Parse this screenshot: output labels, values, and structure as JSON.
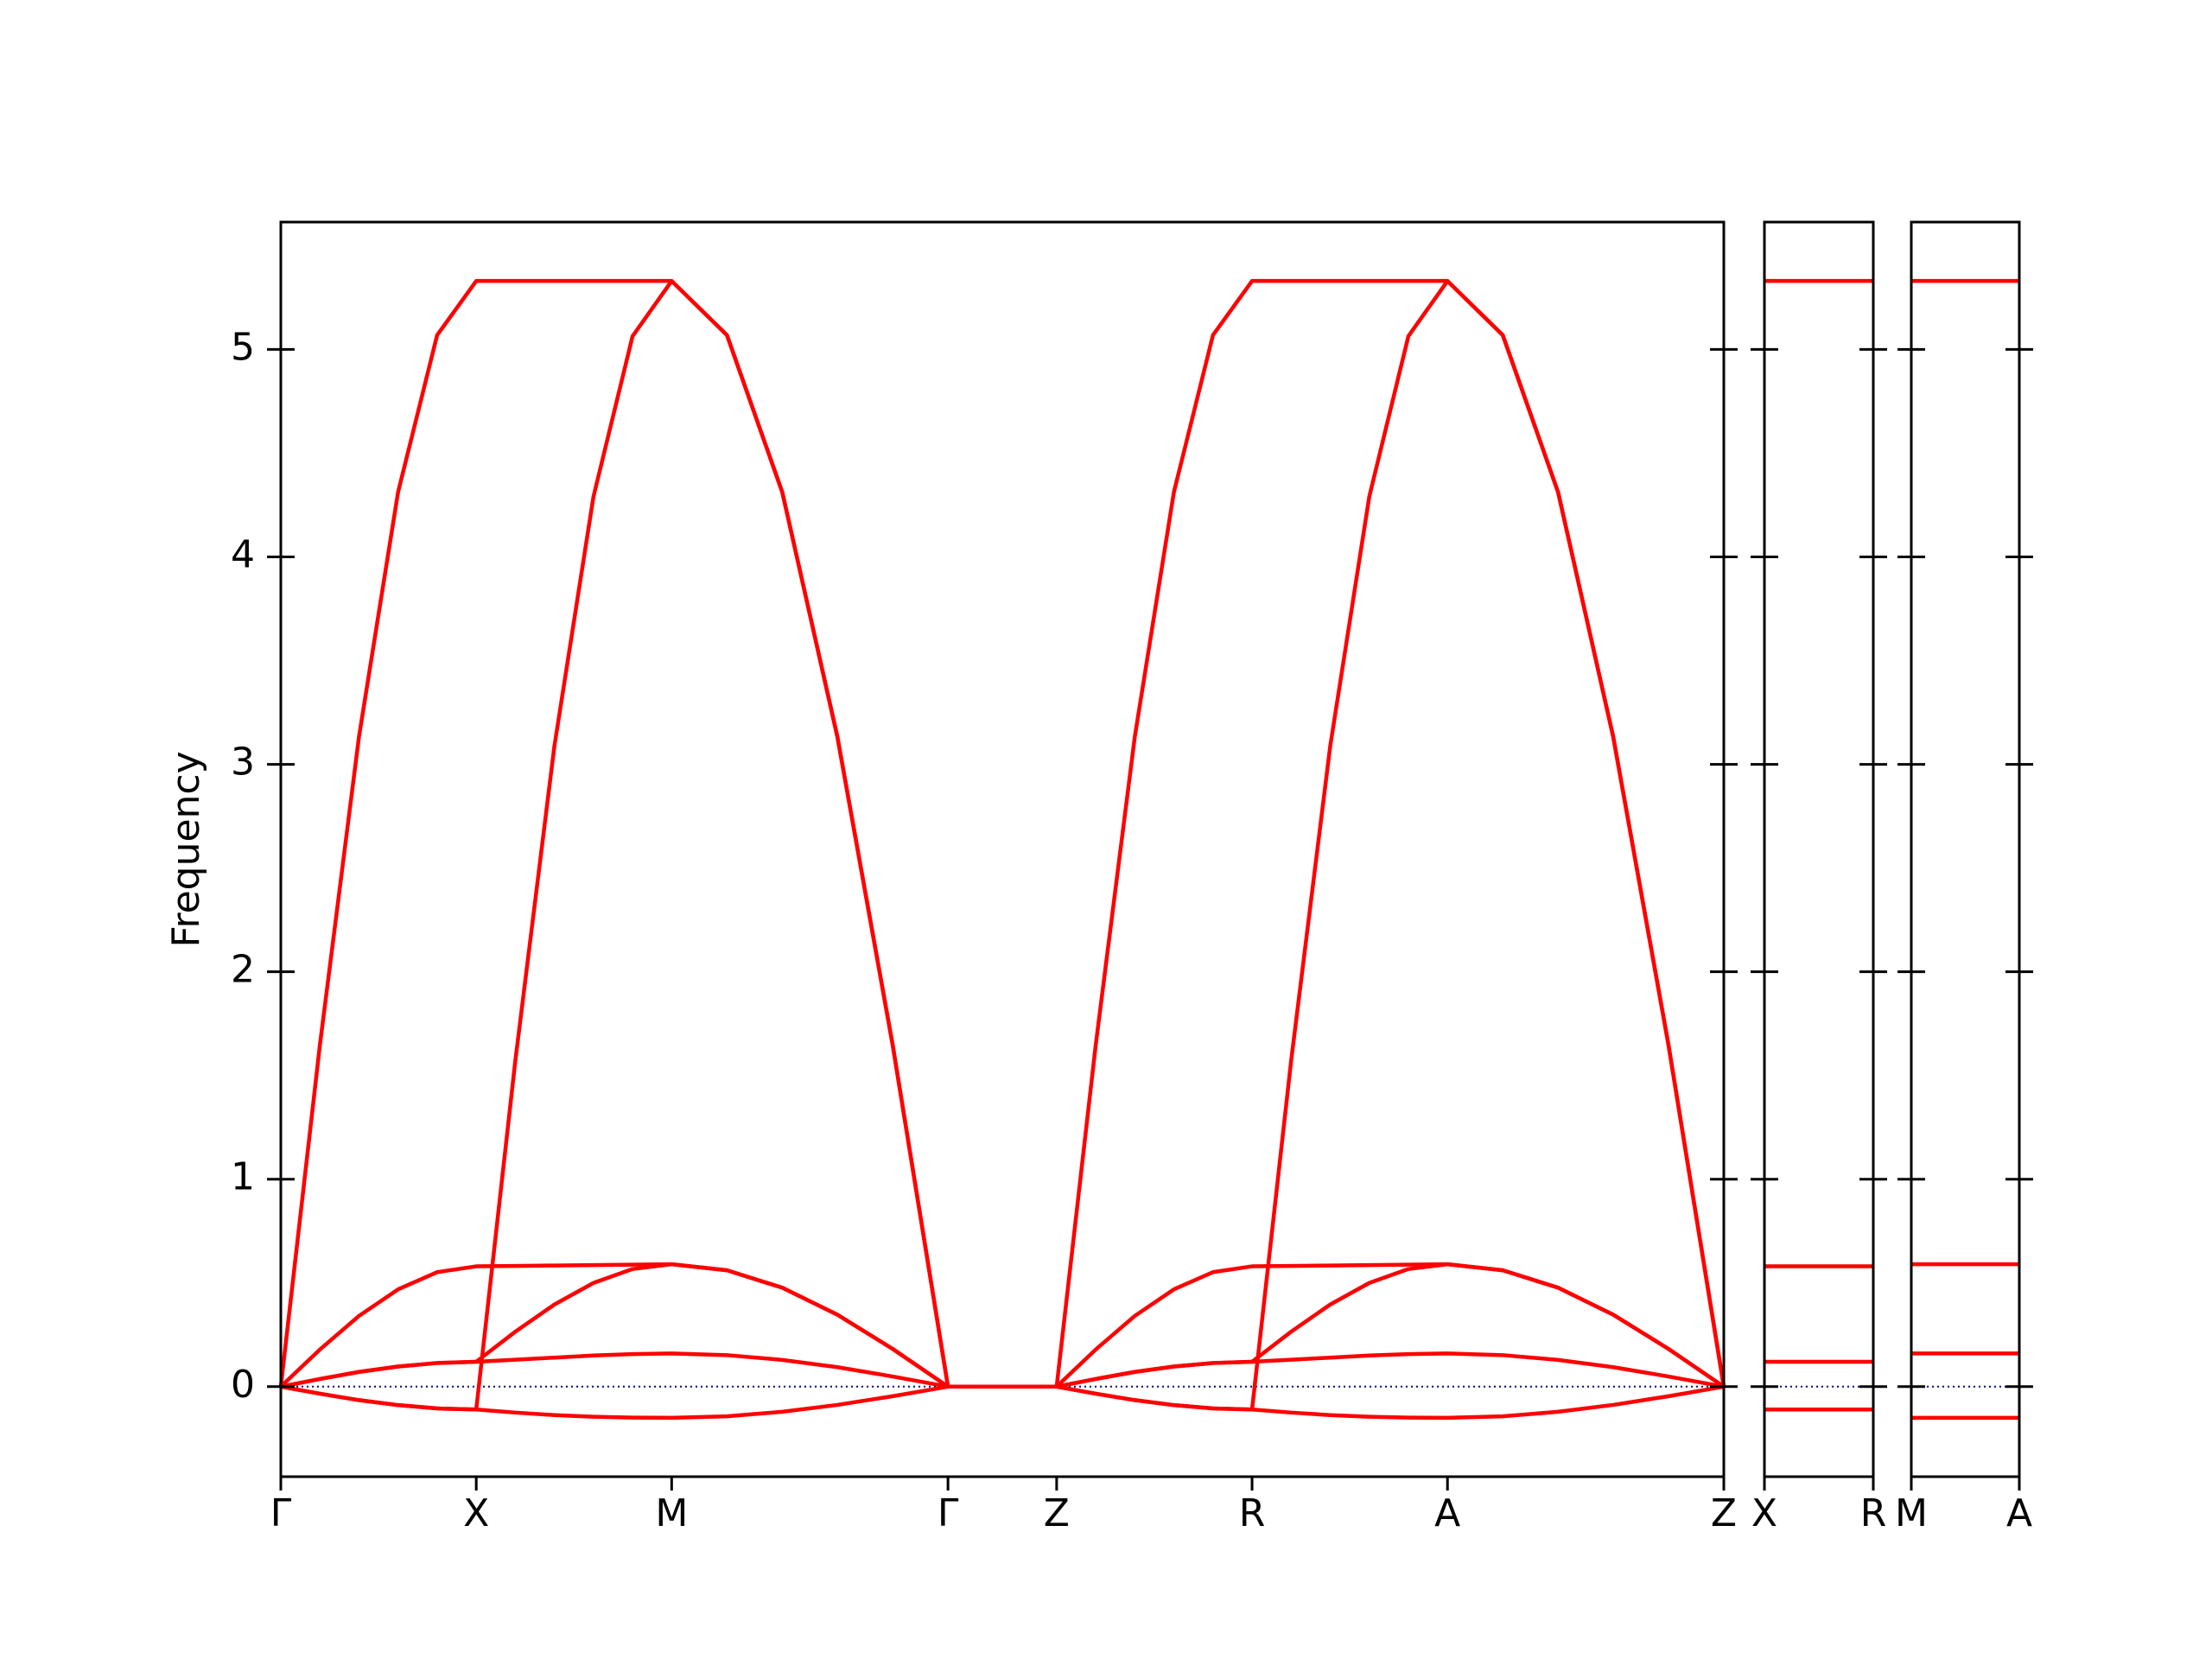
{
  "chart_data": [
    {
      "type": "line",
      "ylabel": "Frequency",
      "color": "#ff0000",
      "zero_line": true,
      "zero_line_color": "#000080",
      "xlim": [
        0,
        7.384
      ],
      "ylim": [
        -0.434,
        5.614
      ],
      "xticks": [
        {
          "value": 0,
          "label": "Γ"
        },
        {
          "value": 1,
          "label": "X"
        },
        {
          "value": 2,
          "label": "M"
        },
        {
          "value": 3.414,
          "label": "Γ"
        },
        {
          "value": 3.97,
          "label": "Z"
        },
        {
          "value": 4.97,
          "label": "R"
        },
        {
          "value": 5.97,
          "label": "A"
        },
        {
          "value": 7.384,
          "label": "Z"
        }
      ],
      "yticks": [
        0,
        1,
        2,
        3,
        4,
        5
      ],
      "x": [
        0,
        0.2,
        0.4,
        0.6,
        0.8,
        1,
        1.2,
        1.4,
        1.6,
        1.8,
        2,
        2.283,
        2.566,
        2.848,
        3.131,
        3.414,
        3.97,
        4.17,
        4.37,
        4.57,
        4.77,
        4.97,
        5.17,
        5.37,
        5.57,
        5.77,
        5.97,
        6.253,
        6.536,
        6.818,
        7.101,
        7.384
      ],
      "series": [
        {
          "values": [
            0,
            1.647,
            3.133,
            4.312,
            5.069,
            5.33,
            5.33,
            5.33,
            5.33,
            5.33,
            5.33,
            5.069,
            4.312,
            3.133,
            1.647,
            0,
            0,
            1.647,
            3.133,
            4.312,
            5.069,
            5.33,
            5.33,
            5.33,
            5.33,
            5.33,
            5.33,
            5.069,
            4.312,
            3.133,
            1.647,
            0
          ]
        },
        {
          "values": [
            0,
            0.179,
            0.341,
            0.469,
            0.552,
            0.58,
            0.582,
            0.584,
            0.586,
            0.588,
            0.59,
            0.561,
            0.477,
            0.347,
            0.182,
            0,
            0,
            0.179,
            0.341,
            0.469,
            0.552,
            0.58,
            0.582,
            0.584,
            0.586,
            0.588,
            0.59,
            0.561,
            0.477,
            0.347,
            0.182,
            0
          ]
        },
        {
          "values": [
            0,
            0.037,
            0.071,
            0.097,
            0.114,
            0.12,
            0.13,
            0.14,
            0.15,
            0.157,
            0.16,
            0.152,
            0.129,
            0.094,
            0.049,
            0,
            0,
            0.037,
            0.071,
            0.097,
            0.114,
            0.12,
            0.13,
            0.14,
            0.15,
            0.157,
            0.16,
            0.152,
            0.129,
            0.094,
            0.049,
            0
          ]
        },
        {
          "values": [
            0,
            -0.034,
            -0.065,
            -0.089,
            -0.105,
            -0.11,
            -0.125,
            -0.137,
            -0.145,
            -0.149,
            -0.15,
            -0.143,
            -0.121,
            -0.088,
            -0.046,
            0,
            0,
            -0.034,
            -0.065,
            -0.089,
            -0.105,
            -0.11,
            -0.125,
            -0.137,
            -0.145,
            -0.149,
            -0.15,
            -0.143,
            -0.121,
            -0.088,
            -0.046,
            0
          ]
        },
        {
          "values": [
            0,
            -0.034,
            -0.065,
            -0.089,
            -0.105,
            -0.11,
            1.571,
            3.088,
            4.291,
            5.064,
            5.33,
            5.069,
            4.312,
            3.133,
            1.647,
            0,
            0,
            -0.034,
            -0.065,
            -0.089,
            -0.105,
            -0.11,
            1.571,
            3.088,
            4.291,
            5.064,
            5.33,
            5.069,
            4.312,
            3.133,
            1.647,
            0
          ]
        },
        {
          "values": [
            0,
            0.037,
            0.071,
            0.097,
            0.114,
            0.12,
            0.265,
            0.396,
            0.5,
            0.567,
            0.59,
            0.561,
            0.477,
            0.347,
            0.182,
            0,
            0,
            0.037,
            0.071,
            0.097,
            0.114,
            0.12,
            0.265,
            0.396,
            0.5,
            0.567,
            0.59,
            0.561,
            0.477,
            0.347,
            0.182,
            0
          ]
        }
      ]
    },
    {
      "type": "line",
      "color": "#ff0000",
      "zero_line": true,
      "zero_line_color": "#000080",
      "xlim": [
        0,
        0.556
      ],
      "ylim": [
        -0.434,
        5.614
      ],
      "xticks": [
        {
          "value": 0,
          "label": "X"
        },
        {
          "value": 0.556,
          "label": "R"
        }
      ],
      "x": [
        0,
        0.556
      ],
      "series": [
        {
          "values": [
            5.33,
            5.33
          ]
        },
        {
          "values": [
            0.58,
            0.58
          ]
        },
        {
          "values": [
            0.12,
            0.12
          ]
        },
        {
          "values": [
            -0.11,
            -0.11
          ]
        }
      ]
    },
    {
      "type": "line",
      "color": "#ff0000",
      "zero_line": true,
      "zero_line_color": "#000080",
      "xlim": [
        0,
        0.556
      ],
      "ylim": [
        -0.434,
        5.614
      ],
      "xticks": [
        {
          "value": 0,
          "label": "M"
        },
        {
          "value": 0.556,
          "label": "A"
        }
      ],
      "x": [
        0,
        0.556
      ],
      "series": [
        {
          "values": [
            5.33,
            5.33
          ]
        },
        {
          "values": [
            0.59,
            0.59
          ]
        },
        {
          "values": [
            0.16,
            0.16
          ]
        },
        {
          "values": [
            -0.15,
            -0.15
          ]
        }
      ]
    }
  ]
}
